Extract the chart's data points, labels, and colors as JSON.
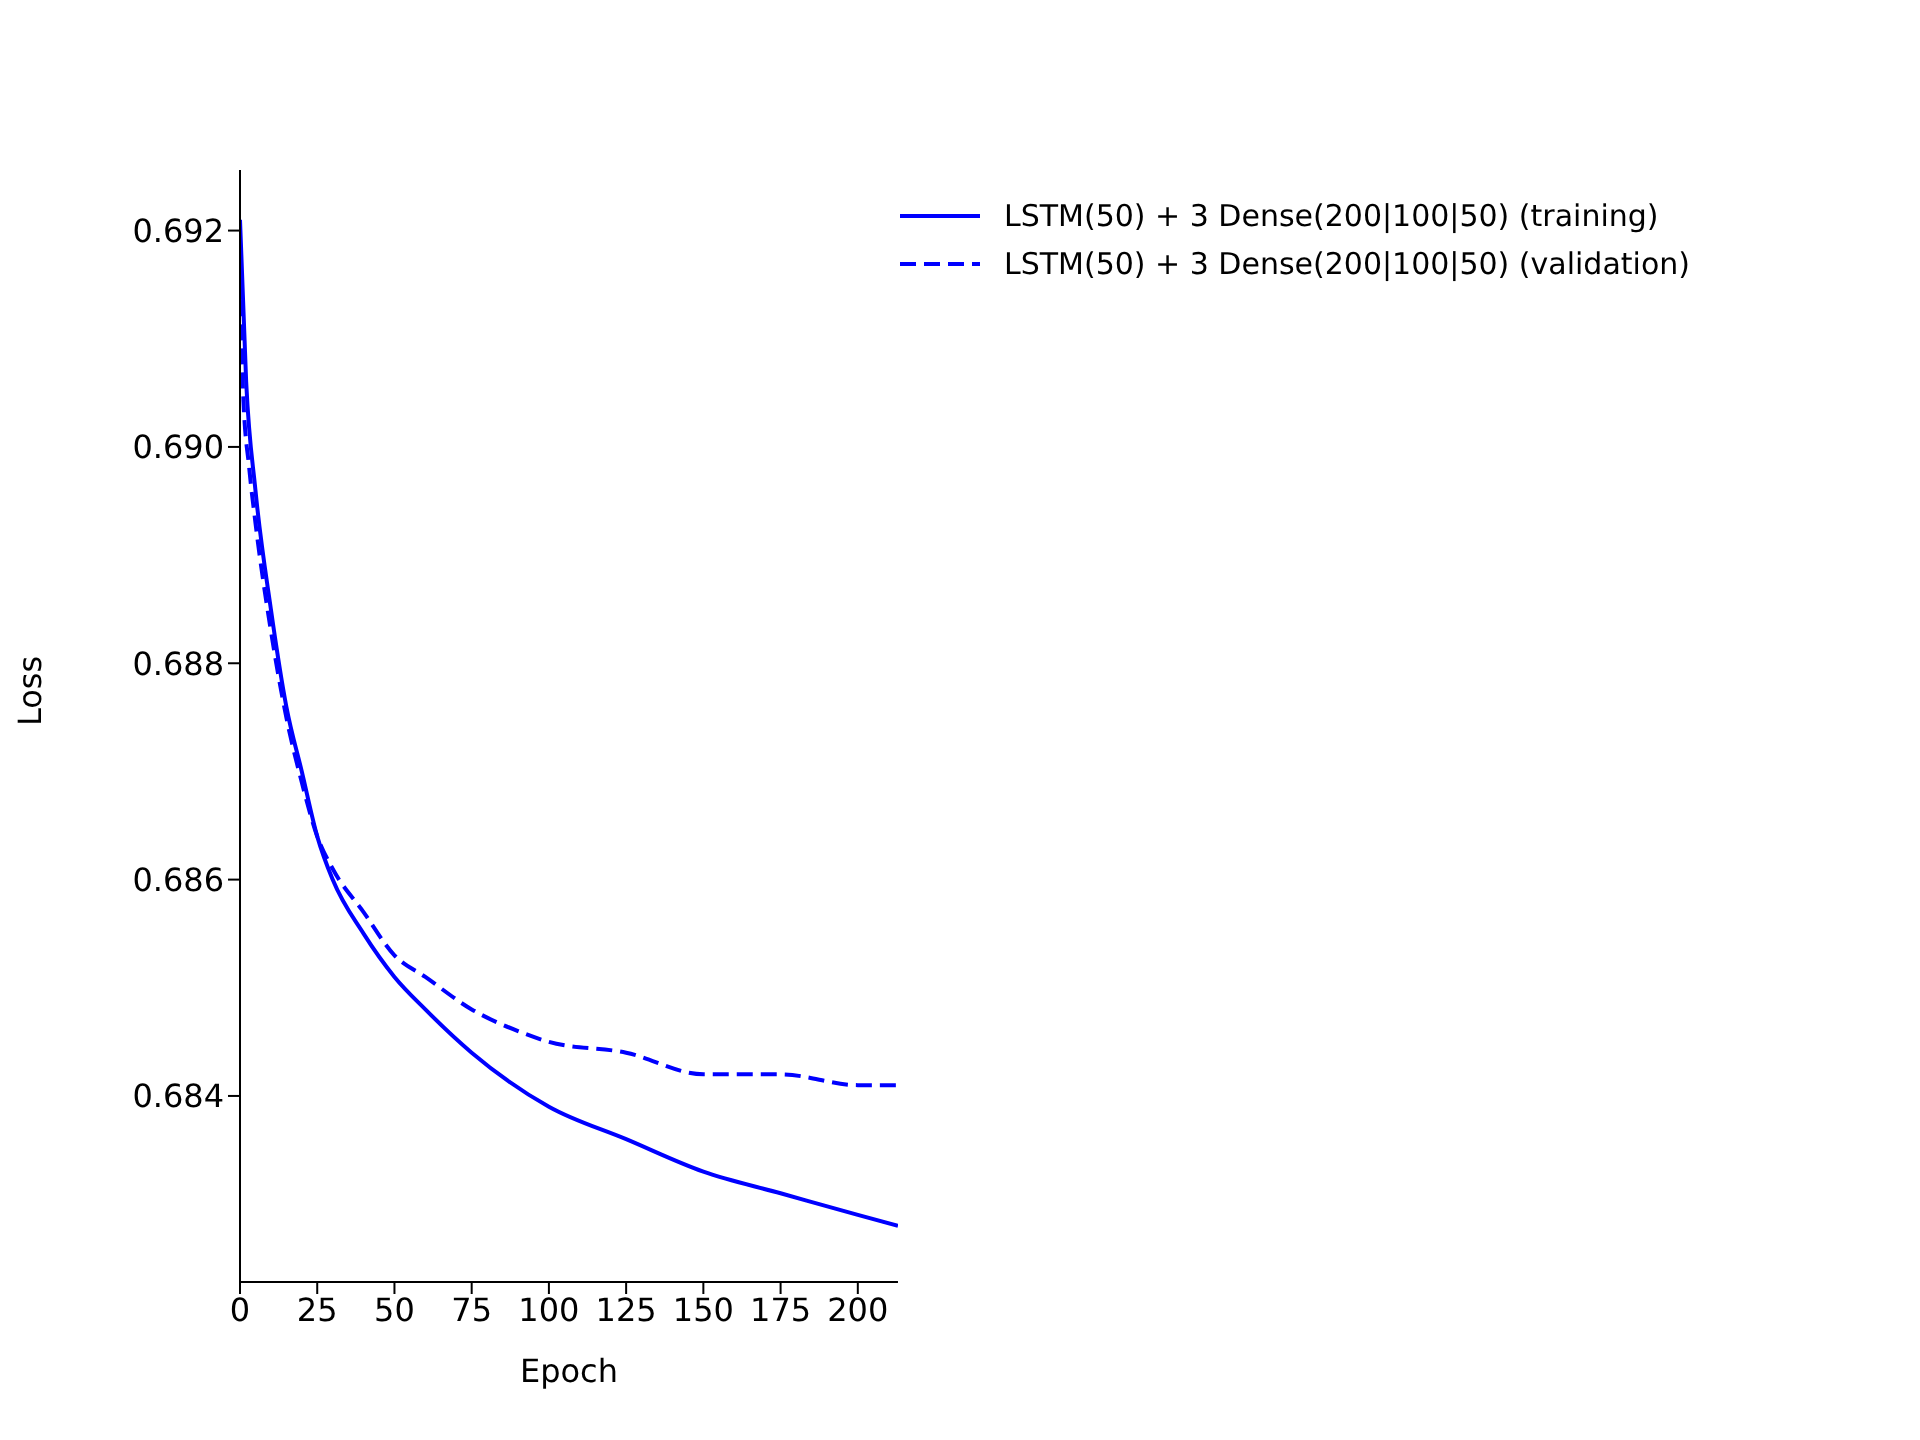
{
  "chart_data": {
    "type": "line",
    "xlabel": "Epoch",
    "ylabel": "Loss",
    "xlim": [
      0,
      213
    ],
    "ylim": [
      0.68228,
      0.69256
    ],
    "xticks": [
      0,
      25,
      50,
      75,
      100,
      125,
      150,
      175,
      200
    ],
    "yticks": [
      0.684,
      0.686,
      0.688,
      {
        "value": 0.69,
        "label": "0.690"
      },
      0.692
    ],
    "grid": false,
    "legend": "top right",
    "marker": "none",
    "series": [
      {
        "name": "LSTM(50) + 3 Dense(200|100|50) (training)",
        "color": "#0000ff",
        "line_style": "solid",
        "x": [
          0,
          2,
          5,
          10,
          15,
          20,
          25,
          30,
          40,
          50,
          60,
          75,
          100,
          125,
          150,
          175,
          200,
          213
        ],
        "values": [
          0.6921,
          0.6906,
          0.6896,
          0.6885,
          0.6876,
          0.687,
          0.6864,
          0.686,
          0.6855,
          0.6851,
          0.6848,
          0.6844,
          0.6839,
          0.6836,
          0.6833,
          0.6831,
          0.6829,
          0.6828
        ]
      },
      {
        "name": "LSTM(50) + 3 Dense(200|100|50) (validation)",
        "color": "#0000ff",
        "line_style": "dashed",
        "x": [
          0,
          1,
          3,
          5,
          10,
          15,
          20,
          25,
          30,
          40,
          50,
          60,
          75,
          90,
          100,
          125,
          150,
          175,
          200,
          213
        ],
        "values": [
          0.6918,
          0.6905,
          0.6898,
          0.6893,
          0.6883,
          0.6875,
          0.6869,
          0.6864,
          0.6861,
          0.6857,
          0.6853,
          0.6851,
          0.6848,
          0.6846,
          0.6845,
          0.6844,
          0.6842,
          0.6842,
          0.6841,
          0.6841
        ]
      }
    ]
  }
}
